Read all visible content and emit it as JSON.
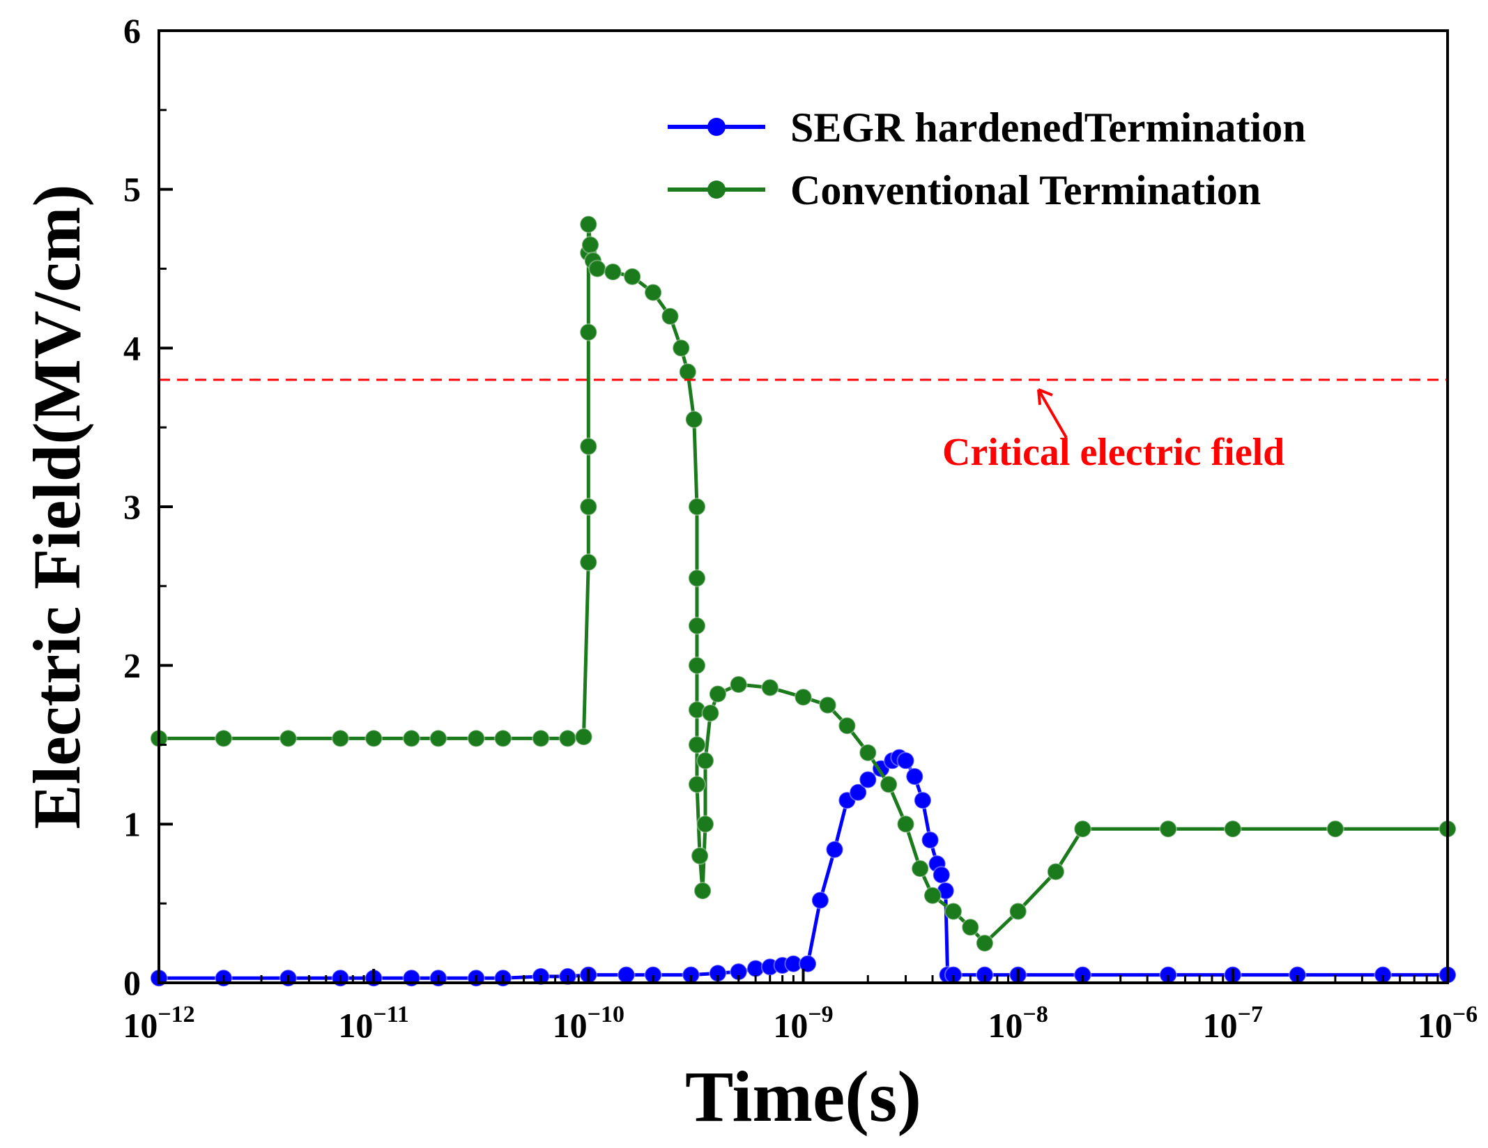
{
  "chart_data": {
    "type": "line",
    "title": "",
    "xlabel": "Time(s)",
    "ylabel": "Electric Field(MV/cm)",
    "xscale": "log",
    "xlim": [
      1e-12,
      1e-06
    ],
    "ylim": [
      0,
      6
    ],
    "yticks": [
      "0",
      "1",
      "2",
      "3",
      "4",
      "5",
      "6"
    ],
    "xticks": [
      {
        "base": "10",
        "exp": "−12"
      },
      {
        "base": "10",
        "exp": "−11"
      },
      {
        "base": "10",
        "exp": "−10"
      },
      {
        "base": "10",
        "exp": "−9"
      },
      {
        "base": "10",
        "exp": "−8"
      },
      {
        "base": "10",
        "exp": "−7"
      },
      {
        "base": "10",
        "exp": "−6"
      }
    ],
    "legend_position": "top-right",
    "reference_line": {
      "y": 3.8,
      "color": "#ff0000",
      "style": "dashed",
      "label": "Critical electric field"
    },
    "series": [
      {
        "name": "SEGR hardenedTermination",
        "color": "#0000ff",
        "x": [
          1e-12,
          2e-12,
          4e-12,
          7e-12,
          1e-11,
          1.5e-11,
          2e-11,
          3e-11,
          4e-11,
          6e-11,
          8e-11,
          1e-10,
          1.5e-10,
          2e-10,
          3e-10,
          4e-10,
          5e-10,
          6e-10,
          7e-10,
          8e-10,
          9e-10,
          1.05e-09,
          1.2e-09,
          1.4e-09,
          1.6e-09,
          1.8e-09,
          2e-09,
          2.3e-09,
          2.6e-09,
          2.8e-09,
          3e-09,
          3.3e-09,
          3.6e-09,
          3.9e-09,
          4.2e-09,
          4.4e-09,
          4.6e-09,
          4.7e-09,
          5e-09,
          7e-09,
          1e-08,
          2e-08,
          5e-08,
          1e-07,
          2e-07,
          5e-07,
          1e-06
        ],
        "y": [
          0.03,
          0.03,
          0.03,
          0.03,
          0.03,
          0.03,
          0.03,
          0.03,
          0.03,
          0.04,
          0.04,
          0.05,
          0.05,
          0.05,
          0.05,
          0.06,
          0.07,
          0.09,
          0.1,
          0.11,
          0.12,
          0.12,
          0.52,
          0.84,
          1.15,
          1.2,
          1.28,
          1.35,
          1.4,
          1.42,
          1.4,
          1.3,
          1.15,
          0.9,
          0.75,
          0.68,
          0.58,
          0.05,
          0.05,
          0.05,
          0.05,
          0.05,
          0.05,
          0.05,
          0.05,
          0.05,
          0.05
        ]
      },
      {
        "name": "Conventional Termination",
        "color": "#1b7a1b",
        "x": [
          1e-12,
          2e-12,
          4e-12,
          7e-12,
          1e-11,
          1.5e-11,
          2e-11,
          3e-11,
          4e-11,
          6e-11,
          8e-11,
          9.5e-11,
          1e-10,
          1e-10,
          1e-10,
          1e-10,
          1e-10,
          1e-10,
          1.02e-10,
          1.05e-10,
          1.1e-10,
          1.3e-10,
          1.6e-10,
          2e-10,
          2.4e-10,
          2.7e-10,
          2.9e-10,
          3.1e-10,
          3.2e-10,
          3.2e-10,
          3.2e-10,
          3.2e-10,
          3.2e-10,
          3.2e-10,
          3.2e-10,
          3.3e-10,
          3.4e-10,
          3.5e-10,
          3.5e-10,
          3.7e-10,
          4e-10,
          5e-10,
          7e-10,
          1e-09,
          1.3e-09,
          1.6e-09,
          2e-09,
          2.5e-09,
          3e-09,
          3.5e-09,
          4e-09,
          5e-09,
          6e-09,
          7e-09,
          1e-08,
          1.5e-08,
          2e-08,
          5e-08,
          1e-07,
          3e-07,
          1e-06
        ],
        "y": [
          1.54,
          1.54,
          1.54,
          1.54,
          1.54,
          1.54,
          1.54,
          1.54,
          1.54,
          1.54,
          1.54,
          1.55,
          2.65,
          3.0,
          3.38,
          4.1,
          4.6,
          4.78,
          4.65,
          4.55,
          4.5,
          4.48,
          4.45,
          4.35,
          4.2,
          4.0,
          3.85,
          3.55,
          3.0,
          2.55,
          2.25,
          2.0,
          1.72,
          1.5,
          1.25,
          0.8,
          0.58,
          1.0,
          1.4,
          1.7,
          1.82,
          1.88,
          1.86,
          1.8,
          1.75,
          1.62,
          1.45,
          1.25,
          1.0,
          0.72,
          0.55,
          0.45,
          0.35,
          0.25,
          0.45,
          0.7,
          0.97,
          0.97,
          0.97,
          0.97,
          0.97
        ]
      }
    ]
  }
}
